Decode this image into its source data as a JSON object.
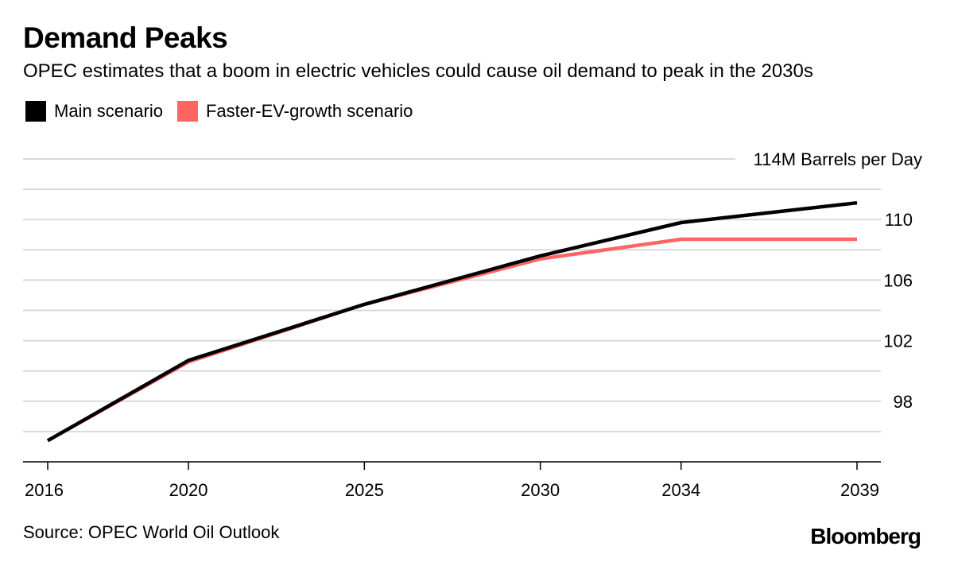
{
  "header": {
    "title": "Demand Peaks",
    "subtitle": "OPEC estimates that a boom in electric vehicles could cause oil demand to peak in the 2030s"
  },
  "legend": {
    "items": [
      {
        "label": "Main scenario",
        "color": "#000000"
      },
      {
        "label": "Faster-EV-growth scenario",
        "color": "#ff6464"
      }
    ]
  },
  "footer": {
    "source": "Source: OPEC World Oil Outlook",
    "brand": "Bloomberg"
  },
  "chart_data": {
    "type": "line",
    "title": "Demand Peaks",
    "subtitle": "OPEC estimates that a boom in electric vehicles could cause oil demand to peak in the 2030s",
    "xlabel": "",
    "ylabel": "",
    "y_axis_side": "right",
    "ylim": [
      94,
      114
    ],
    "y_ticks": [
      {
        "value": 114,
        "label": "114M Barrels per Day"
      },
      {
        "value": 110,
        "label": "110"
      },
      {
        "value": 106,
        "label": "106"
      },
      {
        "value": 102,
        "label": "102"
      },
      {
        "value": 98,
        "label": "98"
      }
    ],
    "y_gridlines": [
      96,
      98,
      100,
      102,
      104,
      106,
      108,
      110,
      112,
      114
    ],
    "xlim": [
      2015.7,
      2039.9
    ],
    "x_ticks": [
      2016,
      2020,
      2025,
      2030,
      2034,
      2039
    ],
    "grid": true,
    "legend_position": "top-left",
    "series": [
      {
        "name": "Main scenario",
        "color": "#000000",
        "x": [
          2016,
          2020,
          2025,
          2030,
          2034,
          2039
        ],
        "values": [
          95.4,
          100.7,
          104.4,
          107.6,
          109.8,
          111.1
        ]
      },
      {
        "name": "Faster-EV-growth scenario",
        "color": "#ff6464",
        "x": [
          2016,
          2020,
          2025,
          2030,
          2034,
          2039
        ],
        "values": [
          95.4,
          100.6,
          104.4,
          107.4,
          108.7,
          108.7
        ]
      }
    ]
  }
}
